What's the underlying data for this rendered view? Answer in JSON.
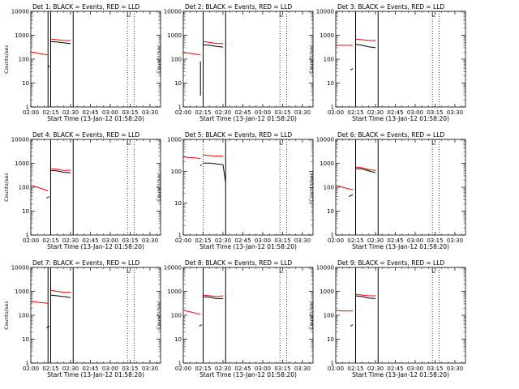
{
  "figure": {
    "colors": {
      "events": "#000000",
      "lld": "#ff0000",
      "background": "#ffffff"
    }
  },
  "chart_data": [
    {
      "type": "line",
      "panel": "det1",
      "title": "Det 1: BLACK = Events, RED = LLD",
      "ylabel": "Counts/sec",
      "xlabel": "Start Time (13-Jan-12 01:58:20)",
      "xlim": [
        "02:00",
        "03:38"
      ],
      "ylim": [
        1,
        10000
      ],
      "yscale": "log",
      "xticks": [
        "02:00",
        "02:15",
        "02:30",
        "02:45",
        "03:00",
        "03:15",
        "03:30"
      ],
      "yticks": [
        "1",
        "10",
        "100",
        "1000",
        "10000"
      ],
      "vlines_solid": [
        "02:13",
        "02:15",
        "02:32"
      ],
      "vlines_dotted": [
        "02:15",
        "03:13",
        "03:18"
      ],
      "series": [
        {
          "color": "#ff0000",
          "segments": [
            [
              [
                "02:00",
                200
              ],
              [
                "02:05",
                180
              ],
              [
                "02:10",
                160
              ],
              [
                "02:13",
                150
              ]
            ],
            [
              [
                "02:15",
                700
              ],
              [
                "02:20",
                650
              ],
              [
                "02:25",
                600
              ],
              [
                "02:30",
                600
              ]
            ]
          ]
        },
        {
          "color": "#000000",
          "segments": [
            [
              [
                "02:13",
                45
              ],
              [
                "02:14",
                55
              ]
            ],
            [
              [
                "02:15",
                550
              ],
              [
                "02:20",
                520
              ],
              [
                "02:25",
                480
              ],
              [
                "02:30",
                450
              ]
            ]
          ]
        }
      ]
    },
    {
      "type": "line",
      "panel": "det2",
      "title": "Det 2: BLACK = Events, RED = LLD",
      "ylabel": "Counts/sec",
      "xlabel": "Start Time (13-Jan-12 01:58:20)",
      "xlim": [
        "02:00",
        "03:38"
      ],
      "ylim": [
        1,
        10000
      ],
      "yscale": "log",
      "xticks": [
        "02:00",
        "02:15",
        "02:30",
        "02:45",
        "03:00",
        "03:15",
        "03:30"
      ],
      "yticks": [
        "1",
        "10",
        "100",
        "1000",
        "10000"
      ],
      "vlines_solid": [
        "02:15",
        "02:32"
      ],
      "vlines_dotted": [
        "02:15",
        "03:13",
        "03:18"
      ],
      "series": [
        {
          "color": "#ff0000",
          "segments": [
            [
              [
                "02:00",
                190
              ],
              [
                "02:05",
                175
              ],
              [
                "02:10",
                160
              ],
              [
                "02:13",
                150
              ]
            ],
            [
              [
                "02:15",
                550
              ],
              [
                "02:20",
                500
              ],
              [
                "02:25",
                450
              ],
              [
                "02:30",
                450
              ]
            ]
          ]
        },
        {
          "color": "#000000",
          "segments": [
            [
              [
                "02:13",
                3
              ],
              [
                "02:13",
                80
              ]
            ],
            [
              [
                "02:15",
                400
              ],
              [
                "02:20",
                380
              ],
              [
                "02:25",
                340
              ],
              [
                "02:30",
                320
              ]
            ]
          ]
        }
      ]
    },
    {
      "type": "line",
      "panel": "det3",
      "title": "Det 3: BLACK = Events, RED = LLD",
      "ylabel": "Counts/sec",
      "xlabel": "Start Time (13-Jan-12 01:58:20)",
      "xlim": [
        "02:00",
        "03:38"
      ],
      "ylim": [
        1,
        10000
      ],
      "yscale": "log",
      "xticks": [
        "02:00",
        "02:15",
        "02:30",
        "02:45",
        "03:00",
        "03:15",
        "03:30"
      ],
      "yticks": [
        "1",
        "10",
        "100",
        "1000",
        "10000"
      ],
      "vlines_solid": [
        "02:15",
        "02:32"
      ],
      "vlines_dotted": [
        "02:15",
        "03:13",
        "03:18"
      ],
      "series": [
        {
          "color": "#ff0000",
          "segments": [
            [
              [
                "02:00",
                380
              ],
              [
                "02:05",
                380
              ],
              [
                "02:10",
                380
              ],
              [
                "02:13",
                380
              ]
            ],
            [
              [
                "02:15",
                700
              ],
              [
                "02:20",
                650
              ],
              [
                "02:25",
                600
              ],
              [
                "02:30",
                600
              ]
            ]
          ]
        },
        {
          "color": "#000000",
          "segments": [
            [
              [
                "02:11",
                35
              ],
              [
                "02:13",
                40
              ]
            ],
            [
              [
                "02:15",
                420
              ],
              [
                "02:20",
                380
              ],
              [
                "02:25",
                330
              ],
              [
                "02:30",
                300
              ]
            ]
          ]
        }
      ]
    },
    {
      "type": "line",
      "panel": "det4",
      "title": "Det 4: BLACK = Events, RED = LLD",
      "ylabel": "Counts/sec",
      "xlabel": "Start Time (13-Jan-12 01:58:20)",
      "xlim": [
        "02:00",
        "03:38"
      ],
      "ylim": [
        1,
        10000
      ],
      "yscale": "log",
      "xticks": [
        "02:00",
        "02:15",
        "02:30",
        "02:45",
        "03:00",
        "03:15",
        "03:30"
      ],
      "yticks": [
        "1",
        "10",
        "100",
        "1000",
        "10000"
      ],
      "vlines_solid": [
        "02:15",
        "02:32"
      ],
      "vlines_dotted": [
        "02:15",
        "03:13",
        "03:18"
      ],
      "series": [
        {
          "color": "#ff0000",
          "segments": [
            [
              [
                "02:00",
                120
              ],
              [
                "02:05",
                100
              ],
              [
                "02:10",
                80
              ],
              [
                "02:13",
                70
              ]
            ],
            [
              [
                "02:15",
                600
              ],
              [
                "02:20",
                560
              ],
              [
                "02:25",
                500
              ],
              [
                "02:30",
                520
              ]
            ]
          ]
        },
        {
          "color": "#000000",
          "segments": [
            [
              [
                "02:12",
                35
              ],
              [
                "02:14",
                40
              ]
            ],
            [
              [
                "02:15",
                500
              ],
              [
                "02:20",
                480
              ],
              [
                "02:25",
                420
              ],
              [
                "02:30",
                400
              ]
            ]
          ]
        }
      ]
    },
    {
      "type": "line",
      "panel": "det5",
      "title": "Det 5: BLACK = Events, RED = LLD",
      "ylabel": "Counts/sec",
      "xlabel": "Start Time (13-Jan-12 01:58:20)",
      "xlim": [
        "02:00",
        "03:38"
      ],
      "ylim": [
        1,
        1000
      ],
      "yscale": "log",
      "xticks": [
        "02:00",
        "02:15",
        "02:30",
        "02:45",
        "03:00",
        "03:15",
        "03:30"
      ],
      "yticks": [
        "1",
        "10",
        "100",
        "1000"
      ],
      "vlines_solid": [
        "02:32"
      ],
      "vlines_dotted": [
        "02:15",
        "03:13",
        "03:18"
      ],
      "series": [
        {
          "color": "#ff0000",
          "segments": [
            [
              [
                "02:00",
                280
              ],
              [
                "02:05",
                270
              ],
              [
                "02:10",
                260
              ],
              [
                "02:13",
                250
              ]
            ],
            [
              [
                "02:15",
                320
              ],
              [
                "02:20",
                310
              ],
              [
                "02:25",
                300
              ],
              [
                "02:30",
                300
              ]
            ]
          ]
        },
        {
          "color": "#000000",
          "segments": [
            [
              [
                "02:13",
                150
              ],
              [
                "02:14",
                160
              ]
            ],
            [
              [
                "02:15",
                180
              ],
              [
                "02:20",
                180
              ],
              [
                "02:25",
                170
              ],
              [
                "02:30",
                160
              ],
              [
                "02:32",
                45
              ]
            ]
          ]
        }
      ]
    },
    {
      "type": "line",
      "panel": "det6",
      "title": "Det 6: BLACK = Events, RED = LLD",
      "ylabel": "Counts/sec",
      "xlabel": "Start Time (13-Jan-12 01:58:20)",
      "xlim": [
        "02:00",
        "03:38"
      ],
      "ylim": [
        1,
        10000
      ],
      "yscale": "log",
      "xticks": [
        "02:00",
        "02:15",
        "02:30",
        "02:45",
        "03:00",
        "03:15",
        "03:30"
      ],
      "yticks": [
        "1",
        "10",
        "100",
        "1000",
        "10000"
      ],
      "vlines_solid": [
        "02:15",
        "02:32"
      ],
      "vlines_dotted": [
        "02:15",
        "03:13",
        "03:18"
      ],
      "series": [
        {
          "color": "#ff0000",
          "segments": [
            [
              [
                "02:00",
                120
              ],
              [
                "02:05",
                100
              ],
              [
                "02:10",
                85
              ],
              [
                "02:13",
                80
              ]
            ],
            [
              [
                "02:15",
                700
              ],
              [
                "02:20",
                650
              ],
              [
                "02:25",
                550
              ],
              [
                "02:30",
                500
              ]
            ]
          ]
        },
        {
          "color": "#000000",
          "segments": [
            [
              [
                "02:10",
                40
              ],
              [
                "02:13",
                50
              ]
            ],
            [
              [
                "02:15",
                600
              ],
              [
                "02:20",
                580
              ],
              [
                "02:25",
                480
              ],
              [
                "02:30",
                400
              ]
            ]
          ]
        }
      ]
    },
    {
      "type": "line",
      "panel": "det7",
      "title": "Det 7: BLACK = Events, RED = LLD",
      "ylabel": "Counts/sec",
      "xlabel": "Start Time (13-Jan-12 01:58:20)",
      "xlim": [
        "02:00",
        "03:38"
      ],
      "ylim": [
        1,
        10000
      ],
      "yscale": "log",
      "xticks": [
        "02:00",
        "02:15",
        "02:30",
        "02:45",
        "03:00",
        "03:15",
        "03:30"
      ],
      "yticks": [
        "1",
        "10",
        "100",
        "1000",
        "10000"
      ],
      "vlines_solid": [
        "02:13",
        "02:15",
        "02:32"
      ],
      "vlines_dotted": [
        "02:15",
        "03:13",
        "03:18"
      ],
      "series": [
        {
          "color": "#ff0000",
          "segments": [
            [
              [
                "02:00",
                380
              ],
              [
                "02:05",
                350
              ],
              [
                "02:10",
                330
              ],
              [
                "02:13",
                320
              ]
            ],
            [
              [
                "02:15",
                1100
              ],
              [
                "02:20",
                1000
              ],
              [
                "02:25",
                900
              ],
              [
                "02:30",
                900
              ]
            ]
          ]
        },
        {
          "color": "#000000",
          "segments": [
            [
              [
                "02:12",
                30
              ],
              [
                "02:14",
                35
              ]
            ],
            [
              [
                "02:15",
                700
              ],
              [
                "02:20",
                650
              ],
              [
                "02:25",
                600
              ],
              [
                "02:30",
                550
              ]
            ]
          ]
        }
      ]
    },
    {
      "type": "line",
      "panel": "det8",
      "title": "Det 8: BLACK = Events, RED = LLD",
      "ylabel": "Counts/sec",
      "xlabel": "Start Time (13-Jan-12 01:58:20)",
      "xlim": [
        "02:00",
        "03:38"
      ],
      "ylim": [
        1,
        10000
      ],
      "yscale": "log",
      "xticks": [
        "02:00",
        "02:15",
        "02:30",
        "02:45",
        "03:00",
        "03:15",
        "03:30"
      ],
      "yticks": [
        "1",
        "10",
        "100",
        "1000",
        "10000"
      ],
      "vlines_solid": [
        "02:15",
        "02:32"
      ],
      "vlines_dotted": [
        "02:15",
        "03:13",
        "03:18"
      ],
      "series": [
        {
          "color": "#ff0000",
          "segments": [
            [
              [
                "02:00",
                160
              ],
              [
                "02:05",
                140
              ],
              [
                "02:10",
                120
              ],
              [
                "02:13",
                110
              ]
            ],
            [
              [
                "02:15",
                700
              ],
              [
                "02:20",
                650
              ],
              [
                "02:25",
                600
              ],
              [
                "02:30",
                650
              ]
            ]
          ]
        },
        {
          "color": "#000000",
          "segments": [
            [
              [
                "02:12",
                35
              ],
              [
                "02:14",
                40
              ]
            ],
            [
              [
                "02:15",
                600
              ],
              [
                "02:20",
                560
              ],
              [
                "02:25",
                500
              ],
              [
                "02:30",
                500
              ]
            ]
          ]
        }
      ]
    },
    {
      "type": "line",
      "panel": "det9",
      "title": "Det 9: BLACK = Events, RED = LLD",
      "ylabel": "Counts/sec",
      "xlabel": "Start Time (13-Jan-12 01:58:20)",
      "xlim": [
        "02:00",
        "03:38"
      ],
      "ylim": [
        1,
        10000
      ],
      "yscale": "log",
      "xticks": [
        "02:00",
        "02:15",
        "02:30",
        "02:45",
        "03:00",
        "03:15",
        "03:30"
      ],
      "yticks": [
        "1",
        "10",
        "100",
        "1000",
        "10000"
      ],
      "vlines_solid": [
        "02:15",
        "02:32"
      ],
      "vlines_dotted": [
        "02:15",
        "03:13",
        "03:18"
      ],
      "series": [
        {
          "color": "#ff0000",
          "segments": [
            [
              [
                "02:00",
                160
              ],
              [
                "02:05",
                150
              ],
              [
                "02:10",
                150
              ],
              [
                "02:13",
                150
              ]
            ],
            [
              [
                "02:15",
                750
              ],
              [
                "02:20",
                700
              ],
              [
                "02:25",
                650
              ],
              [
                "02:30",
                650
              ]
            ]
          ]
        },
        {
          "color": "#000000",
          "segments": [
            [
              [
                "02:11",
                35
              ],
              [
                "02:13",
                40
              ]
            ],
            [
              [
                "02:15",
                650
              ],
              [
                "02:20",
                600
              ],
              [
                "02:25",
                520
              ],
              [
                "02:30",
                500
              ]
            ]
          ]
        }
      ]
    }
  ]
}
